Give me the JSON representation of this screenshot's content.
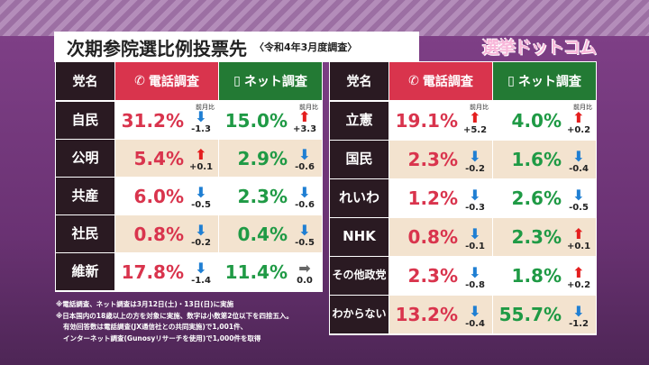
{
  "title": "次期参院選比例投票先",
  "subtitle": "〈令和4年3月度調査〉",
  "logo": "選挙ドットコム",
  "headers": {
    "party": "党名",
    "phone": "電話調査",
    "internet": "ネット調査",
    "change_label": "前月比"
  },
  "left_rows": [
    {
      "party": "自民",
      "phone": "31.2%",
      "phone_chg": "-1.3",
      "phone_dir": "down",
      "net": "15.0%",
      "net_chg": "+3.3",
      "net_dir": "up"
    },
    {
      "party": "公明",
      "phone": "5.4%",
      "phone_chg": "+0.1",
      "phone_dir": "up",
      "net": "2.9%",
      "net_chg": "-0.6",
      "net_dir": "down"
    },
    {
      "party": "共産",
      "phone": "6.0%",
      "phone_chg": "-0.5",
      "phone_dir": "down",
      "net": "2.3%",
      "net_chg": "-0.6",
      "net_dir": "down"
    },
    {
      "party": "社民",
      "phone": "0.8%",
      "phone_chg": "-0.2",
      "phone_dir": "down",
      "net": "0.4%",
      "net_chg": "-0.5",
      "net_dir": "down"
    },
    {
      "party": "維新",
      "phone": "17.8%",
      "phone_chg": "-1.4",
      "phone_dir": "down",
      "net": "11.4%",
      "net_chg": "0.0",
      "net_dir": "flat"
    }
  ],
  "right_rows": [
    {
      "party": "立憲",
      "phone": "19.1%",
      "phone_chg": "+5.2",
      "phone_dir": "up",
      "net": "4.0%",
      "net_chg": "+0.2",
      "net_dir": "up"
    },
    {
      "party": "国民",
      "phone": "2.3%",
      "phone_chg": "-0.2",
      "phone_dir": "down",
      "net": "1.6%",
      "net_chg": "-0.4",
      "net_dir": "down"
    },
    {
      "party": "れいわ",
      "phone": "1.2%",
      "phone_chg": "-0.3",
      "phone_dir": "down",
      "net": "2.6%",
      "net_chg": "-0.5",
      "net_dir": "down"
    },
    {
      "party": "NHK",
      "phone": "0.8%",
      "phone_chg": "-0.1",
      "phone_dir": "down",
      "net": "2.3%",
      "net_chg": "+0.1",
      "net_dir": "up"
    },
    {
      "party": "その他政党",
      "phone": "2.3%",
      "phone_chg": "-0.8",
      "phone_dir": "down",
      "net": "1.8%",
      "net_chg": "+0.2",
      "net_dir": "up"
    },
    {
      "party": "わからない",
      "phone": "13.2%",
      "phone_chg": "-0.4",
      "phone_dir": "down",
      "net": "55.7%",
      "net_chg": "-1.2",
      "net_dir": "down"
    }
  ],
  "notes": [
    "※電話調査、ネット調査は3月12日(土)・13日(日)に実施",
    "※日本国内の18歳以上の方を対象に実施、数字は小数第2位以下を四捨五入。",
    "有効回答数は電話調査(JX通信社との共同実施)で1,001件、",
    "インターネット調査(Gunosyリサーチを使用)で1,000件を取得"
  ]
}
